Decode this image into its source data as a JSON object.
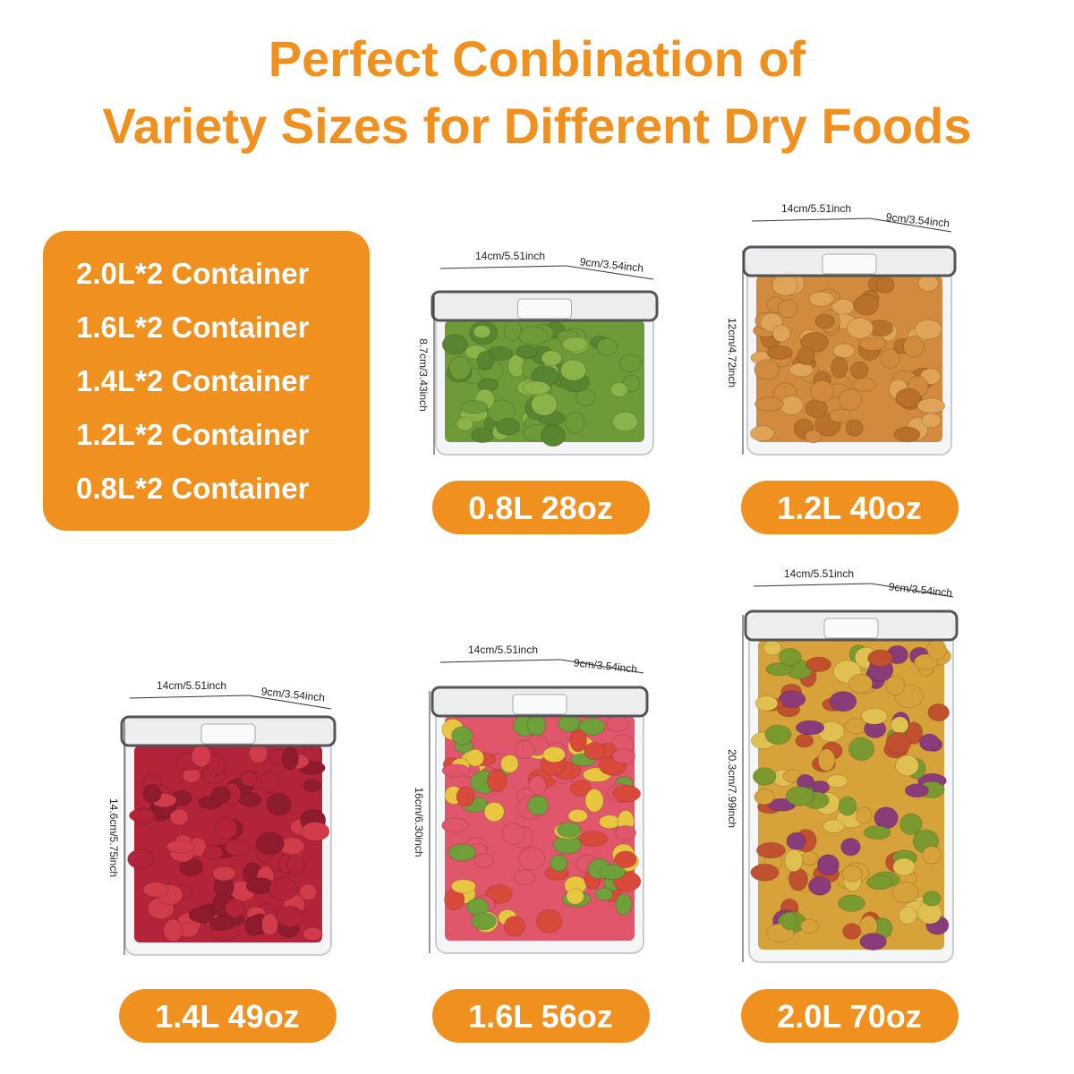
{
  "header": {
    "title_line1": "Perfect Conbination of",
    "title_line2": "Variety Sizes for Different Dry Foods"
  },
  "contents": [
    "2.0L*2 Container",
    "1.6L*2 Container",
    "1.4L*2 Container",
    "1.2L*2 Container",
    "0.8L*2 Container"
  ],
  "products": [
    {
      "capacity": "0.8L 28oz",
      "width": "14cm/5.51inch",
      "depth": "9cm/3.54inch",
      "height": "8.7cm/3.43inch"
    },
    {
      "capacity": "1.2L 40oz",
      "width": "14cm/5.51inch",
      "depth": "9cm/3.54inch",
      "height": "12cm/4.72inch"
    },
    {
      "capacity": "1.4L 49oz",
      "width": "14cm/5.51inch",
      "depth": "9cm/3.54inch",
      "height": "14.6cm/5.75inch"
    },
    {
      "capacity": "1.6L 56oz",
      "width": "14cm/5.51inch",
      "depth": "9cm/3.54inch",
      "height": "16cm/6.30inch"
    },
    {
      "capacity": "2.0L 70oz",
      "width": "14cm/5.51inch",
      "depth": "9cm/3.54inch",
      "height": "20.3cm/7.99inch"
    }
  ]
}
